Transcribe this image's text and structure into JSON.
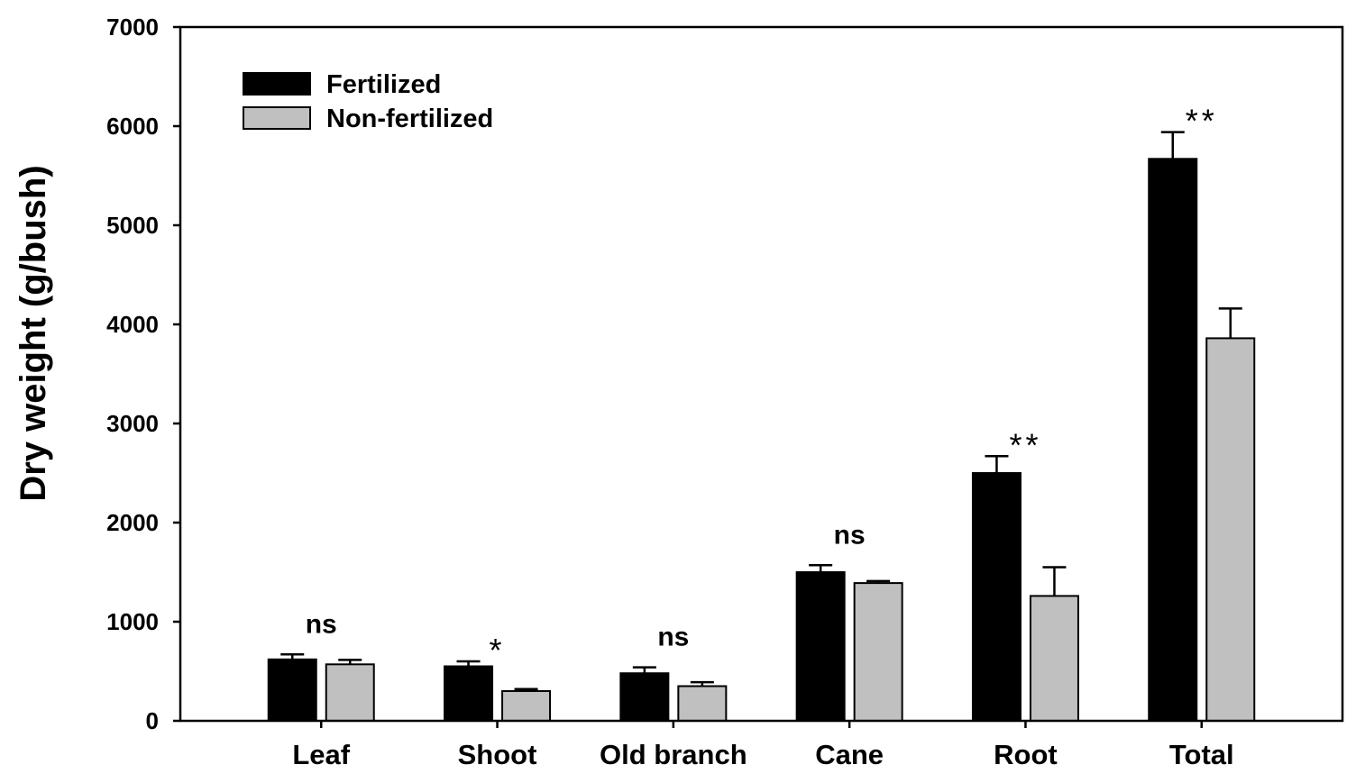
{
  "chart_data": {
    "type": "bar",
    "title": "",
    "xlabel": "",
    "ylabel": "Dry weight (g/bush)",
    "ylim": [
      0,
      7000
    ],
    "yticks": [
      0,
      1000,
      2000,
      3000,
      4000,
      5000,
      6000,
      7000
    ],
    "categories": [
      "Leaf",
      "Shoot",
      "Old branch",
      "Cane",
      "Root",
      "Total"
    ],
    "series": [
      {
        "name": "Fertilized",
        "color": "#000000",
        "values": [
          620,
          550,
          480,
          1500,
          2500,
          5670
        ],
        "errors": [
          50,
          50,
          60,
          70,
          170,
          270
        ]
      },
      {
        "name": "Non-fertilized",
        "color": "#c0c0c0",
        "values": [
          570,
          300,
          350,
          1390,
          1260,
          3860
        ],
        "errors": [
          45,
          20,
          40,
          20,
          290,
          300
        ]
      }
    ],
    "significance": [
      "ns",
      "*",
      "ns",
      "ns",
      "**",
      "**"
    ],
    "legend_position": "top-left",
    "grid": false
  }
}
